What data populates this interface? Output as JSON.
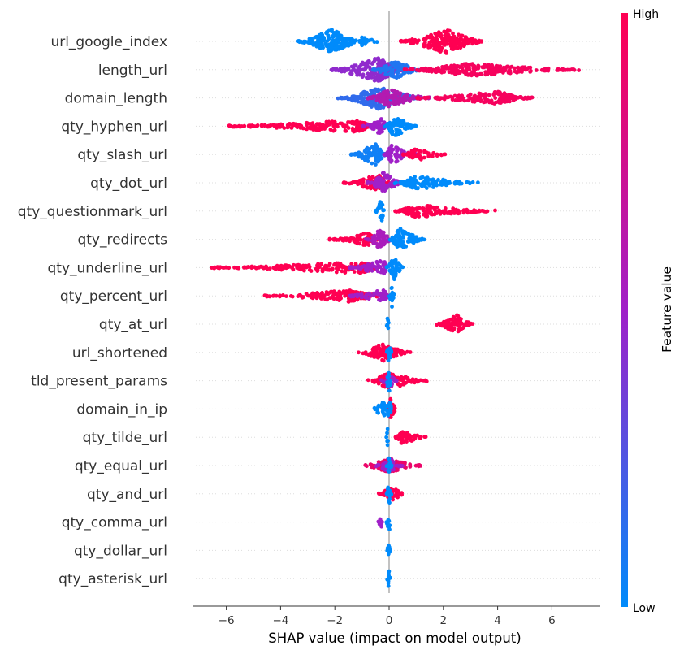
{
  "chart_data": {
    "type": "scatter",
    "subtype": "shap-beeswarm",
    "xlabel": "SHAP value (impact on model output)",
    "xlim": [
      -7.3,
      7.6
    ],
    "xticks": [
      -6,
      -4,
      -2,
      0,
      2,
      4,
      6
    ],
    "colorbar": {
      "title": "Feature value",
      "high_label": "High",
      "low_label": "Low",
      "low_color": "#008bfb",
      "mid_color": "#a020c8",
      "high_color": "#ff0052"
    },
    "colors": {
      "low": "#008bfb",
      "mid": "#a020c8",
      "high": "#ff0052",
      "zero_line": "#999999",
      "grid": "#dddddd"
    },
    "features": [
      {
        "name": "url_google_index",
        "segments": [
          {
            "from": -3.4,
            "to": -1.0,
            "center": -2.1,
            "density": 1.0,
            "value": 0.0
          },
          {
            "from": -1.0,
            "to": -0.3,
            "center": -1.0,
            "density": 0.15,
            "value": 0.0
          },
          {
            "from": 0.4,
            "to": 3.5,
            "center": 2.1,
            "density": 1.0,
            "value": 1.0
          }
        ]
      },
      {
        "name": "length_url",
        "segments": [
          {
            "from": -2.2,
            "to": 0.6,
            "center": -0.4,
            "density": 1.0,
            "value": 0.45
          },
          {
            "from": -0.6,
            "to": 1.2,
            "center": 0.2,
            "density": 0.7,
            "value": 0.1
          },
          {
            "from": 0.5,
            "to": 7.0,
            "center": 3.0,
            "density": 0.35,
            "value": 0.95
          }
        ]
      },
      {
        "name": "domain_length",
        "segments": [
          {
            "from": -1.9,
            "to": 1.2,
            "center": -0.4,
            "density": 0.9,
            "value": 0.15
          },
          {
            "from": -0.8,
            "to": 1.5,
            "center": 0.0,
            "density": 0.6,
            "value": 0.6
          },
          {
            "from": 1.0,
            "to": 5.3,
            "center": 4.0,
            "density": 0.35,
            "value": 0.95
          }
        ]
      },
      {
        "name": "qty_hyphen_url",
        "segments": [
          {
            "from": -6.0,
            "to": -0.5,
            "center": -1.2,
            "density": 0.35,
            "value": 1.0
          },
          {
            "from": -1.0,
            "to": 0.0,
            "center": -0.3,
            "density": 0.6,
            "value": 0.5
          },
          {
            "from": -0.2,
            "to": 1.0,
            "center": 0.2,
            "density": 0.9,
            "value": 0.0
          }
        ]
      },
      {
        "name": "qty_slash_url",
        "segments": [
          {
            "from": -1.4,
            "to": -0.1,
            "center": -0.5,
            "density": 0.9,
            "value": 0.05
          },
          {
            "from": -0.2,
            "to": 1.0,
            "center": 0.1,
            "density": 0.7,
            "value": 0.5
          },
          {
            "from": 0.5,
            "to": 2.1,
            "center": 1.0,
            "density": 0.35,
            "value": 1.0
          }
        ]
      },
      {
        "name": "qty_dot_url",
        "segments": [
          {
            "from": -1.7,
            "to": 0.0,
            "center": -0.4,
            "density": 0.6,
            "value": 1.0
          },
          {
            "from": -0.8,
            "to": 0.5,
            "center": -0.2,
            "density": 0.8,
            "value": 0.5
          },
          {
            "from": 0.2,
            "to": 3.3,
            "center": 1.0,
            "density": 0.4,
            "value": 0.0
          }
        ]
      },
      {
        "name": "qty_questionmark_url",
        "segments": [
          {
            "from": -0.5,
            "to": -0.1,
            "center": -0.3,
            "density": 1.0,
            "value": 0.0
          },
          {
            "from": 0.2,
            "to": 4.0,
            "center": 1.0,
            "density": 0.35,
            "value": 1.0
          }
        ]
      },
      {
        "name": "qty_redirects",
        "segments": [
          {
            "from": -2.2,
            "to": -0.4,
            "center": -0.8,
            "density": 0.4,
            "value": 1.0
          },
          {
            "from": -0.9,
            "to": 0.1,
            "center": -0.3,
            "density": 0.8,
            "value": 0.55
          },
          {
            "from": 0.0,
            "to": 1.3,
            "center": 0.4,
            "density": 0.9,
            "value": 0.0
          }
        ]
      },
      {
        "name": "qty_underline_url",
        "segments": [
          {
            "from": -6.6,
            "to": -0.3,
            "center": -1.0,
            "density": 0.3,
            "value": 1.0
          },
          {
            "from": -1.5,
            "to": 0.0,
            "center": -0.2,
            "density": 0.5,
            "value": 0.5
          },
          {
            "from": -0.1,
            "to": 0.5,
            "center": 0.2,
            "density": 1.0,
            "value": 0.0
          }
        ]
      },
      {
        "name": "qty_percent_url",
        "segments": [
          {
            "from": -4.6,
            "to": -0.2,
            "center": -1.5,
            "density": 0.3,
            "value": 1.0
          },
          {
            "from": -1.5,
            "to": 0.0,
            "center": -0.2,
            "density": 0.4,
            "value": 0.5
          },
          {
            "from": 0.0,
            "to": 0.2,
            "center": 0.1,
            "density": 1.0,
            "value": 0.0
          }
        ]
      },
      {
        "name": "qty_at_url",
        "segments": [
          {
            "from": -0.1,
            "to": 0.0,
            "center": -0.05,
            "density": 1.0,
            "value": 0.0
          },
          {
            "from": 1.7,
            "to": 3.1,
            "center": 2.5,
            "density": 0.7,
            "value": 1.0
          }
        ]
      },
      {
        "name": "url_shortened",
        "segments": [
          {
            "from": -1.2,
            "to": 0.8,
            "center": -0.2,
            "density": 0.6,
            "value": 1.0
          },
          {
            "from": -0.1,
            "to": 0.1,
            "center": 0.0,
            "density": 1.0,
            "value": 0.0
          }
        ]
      },
      {
        "name": "tld_present_params",
        "segments": [
          {
            "from": -0.8,
            "to": 1.4,
            "center": 0.0,
            "density": 0.55,
            "value": 1.0
          },
          {
            "from": -0.3,
            "to": 0.3,
            "center": 0.0,
            "density": 0.6,
            "value": 0.5
          },
          {
            "from": -0.1,
            "to": 0.1,
            "center": 0.0,
            "density": 1.0,
            "value": 0.0
          }
        ]
      },
      {
        "name": "domain_in_ip",
        "segments": [
          {
            "from": -0.7,
            "to": -0.05,
            "center": -0.2,
            "density": 0.5,
            "value": 0.0
          },
          {
            "from": -0.1,
            "to": 0.3,
            "center": 0.05,
            "density": 0.9,
            "value": 1.0
          },
          {
            "from": -0.1,
            "to": 0.1,
            "center": 0.0,
            "density": 1.0,
            "value": 0.0
          }
        ]
      },
      {
        "name": "qty_tilde_url",
        "segments": [
          {
            "from": -0.1,
            "to": 0.0,
            "center": -0.05,
            "density": 1.0,
            "value": 0.0
          },
          {
            "from": 0.2,
            "to": 1.4,
            "center": 0.5,
            "density": 0.4,
            "value": 1.0
          }
        ]
      },
      {
        "name": "qty_equal_url",
        "segments": [
          {
            "from": -0.9,
            "to": 1.2,
            "center": 0.0,
            "density": 0.5,
            "value": 0.9
          },
          {
            "from": -0.5,
            "to": 0.5,
            "center": 0.0,
            "density": 0.5,
            "value": 0.5
          },
          {
            "from": -0.1,
            "to": 0.1,
            "center": 0.0,
            "density": 1.0,
            "value": 0.0
          }
        ]
      },
      {
        "name": "qty_and_url",
        "segments": [
          {
            "from": -0.4,
            "to": 0.6,
            "center": 0.1,
            "density": 0.5,
            "value": 1.0
          },
          {
            "from": -0.1,
            "to": 0.1,
            "center": 0.0,
            "density": 1.0,
            "value": 0.0
          }
        ]
      },
      {
        "name": "qty_comma_url",
        "segments": [
          {
            "from": -0.4,
            "to": -0.2,
            "center": -0.3,
            "density": 0.4,
            "value": 0.5
          },
          {
            "from": -0.1,
            "to": 0.05,
            "center": 0.0,
            "density": 1.0,
            "value": 0.0
          }
        ]
      },
      {
        "name": "qty_dollar_url",
        "segments": [
          {
            "from": -0.08,
            "to": 0.05,
            "center": 0.0,
            "density": 1.0,
            "value": 0.0
          }
        ]
      },
      {
        "name": "qty_asterisk_url",
        "segments": [
          {
            "from": -0.08,
            "to": 0.05,
            "center": 0.0,
            "density": 1.0,
            "value": 0.0
          }
        ]
      }
    ]
  }
}
